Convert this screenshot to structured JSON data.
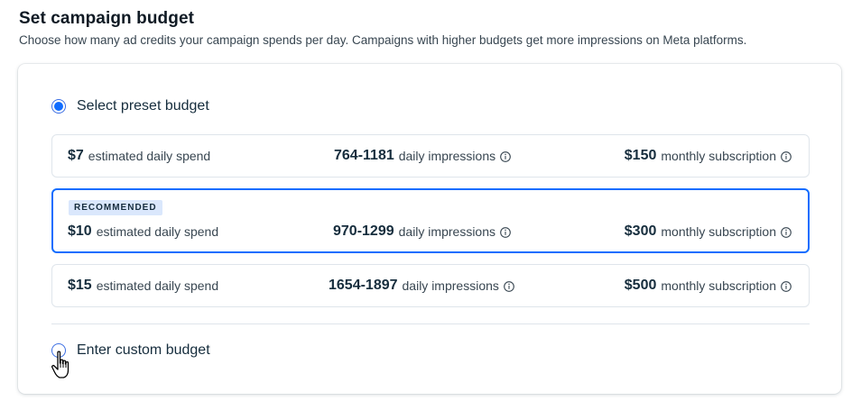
{
  "header": {
    "title": "Set campaign budget",
    "subtitle": "Choose how many ad credits your campaign spends per day. Campaigns with higher budgets get more impressions on Meta platforms."
  },
  "preset": {
    "label": "Select preset budget",
    "selected": true
  },
  "options": [
    {
      "price": "$7",
      "price_suffix": "estimated daily spend",
      "impressions": "764-1181",
      "impressions_suffix": "daily impressions",
      "subscription": "$150",
      "subscription_suffix": "monthly subscription",
      "selected": false
    },
    {
      "badge": "RECOMMENDED",
      "price": "$10",
      "price_suffix": "estimated daily spend",
      "impressions": "970-1299",
      "impressions_suffix": "daily impressions",
      "subscription": "$300",
      "subscription_suffix": "monthly subscription",
      "selected": true
    },
    {
      "price": "$15",
      "price_suffix": "estimated daily spend",
      "impressions": "1654-1897",
      "impressions_suffix": "daily impressions",
      "subscription": "$500",
      "subscription_suffix": "monthly subscription",
      "selected": false
    }
  ],
  "custom": {
    "label": "Enter custom budget",
    "selected": false
  },
  "icons": {
    "info": "info-icon",
    "cursor": "hand-pointer-icon"
  },
  "colors": {
    "accent": "#116dff",
    "badge_bg": "#dae7fc",
    "border": "#dfe5eb",
    "text": "#162d3d"
  }
}
